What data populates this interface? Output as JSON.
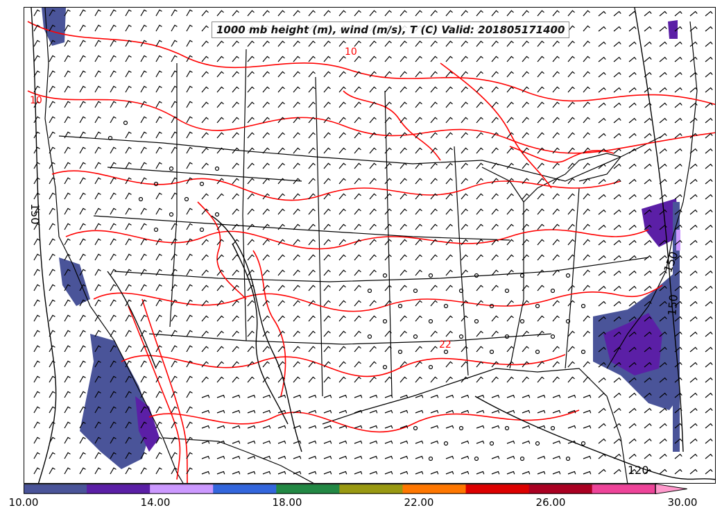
{
  "title": "1000 mb height (m), wind (m/s), T (C) Valid: 201805171400",
  "colorbar": {
    "min": 10,
    "max": 30,
    "step": 2,
    "extend": "max",
    "colors": [
      "#4a5499",
      "#5b1fa6",
      "#cc99ff",
      "#3366dd",
      "#228844",
      "#999911",
      "#ff7700",
      "#dd0000",
      "#aa0022",
      "#ee4499"
    ],
    "extend_color": "#ff99cc",
    "tick_labels": [
      "10.00",
      "14.00",
      "18.00",
      "22.00",
      "26.00",
      "30.00"
    ],
    "tick_values": [
      10,
      14,
      18,
      22,
      26,
      30
    ]
  },
  "contour_labels": {
    "height_west": "150",
    "height_east": "150",
    "height_east2": "150",
    "height_south": "120",
    "temp_north": "10",
    "temp_west": "10",
    "temp_texas": "22"
  },
  "colors": {
    "height_contour": "#000000",
    "temperature_contour": "#ff0000",
    "borders": "#000000",
    "wind_barbs": "#000000"
  }
}
